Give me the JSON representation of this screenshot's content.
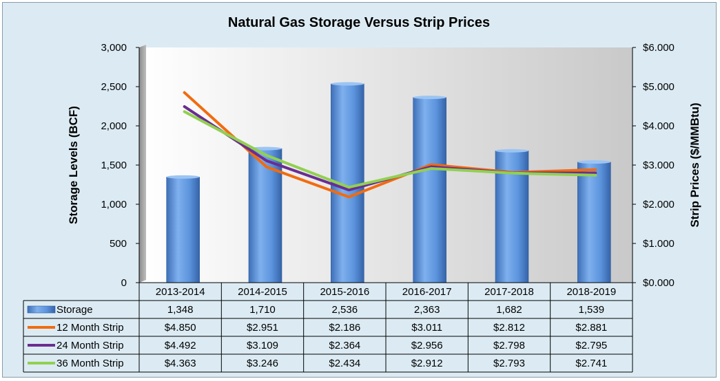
{
  "chart_data": {
    "type": "bar+line",
    "title": "Natural Gas Storage Versus Strip Prices",
    "ylabel_left": "Storage Levels (BCF)",
    "ylabel_right": "Strip Prices ($/MMBtu)",
    "ylim_left": [
      0,
      3000
    ],
    "ylim_right": [
      0,
      6
    ],
    "yticks_left": [
      "0",
      "500",
      "1,000",
      "1,500",
      "2,000",
      "2,500",
      "3,000"
    ],
    "yticks_right": [
      "$0.000",
      "$1.000",
      "$2.000",
      "$3.000",
      "$4.000",
      "$5.000",
      "$6.000"
    ],
    "categories": [
      "2013-2014",
      "2014-2015",
      "2015-2016",
      "2016-2017",
      "2017-2018",
      "2018-2019"
    ],
    "grid": false,
    "legend": "data-table",
    "bar_series": {
      "name": "Storage",
      "color": "#5b93dc",
      "values": [
        1348,
        1710,
        2536,
        2363,
        1682,
        1539
      ],
      "labels": [
        "1,348",
        "1,710",
        "2,536",
        "2,363",
        "1,682",
        "1,539"
      ]
    },
    "line_series": [
      {
        "name": "12 Month Strip",
        "color": "#f26b0f",
        "values": [
          4.85,
          2.951,
          2.186,
          3.011,
          2.812,
          2.881
        ],
        "labels": [
          "$4.850",
          "$2.951",
          "$2.186",
          "$3.011",
          "$2.812",
          "$2.881"
        ]
      },
      {
        "name": "24 Month Strip",
        "color": "#6a2d91",
        "values": [
          4.492,
          3.109,
          2.364,
          2.956,
          2.798,
          2.795
        ],
        "labels": [
          "$4.492",
          "$3.109",
          "$2.364",
          "$2.956",
          "$2.798",
          "$2.795"
        ]
      },
      {
        "name": "36 Month Strip",
        "color": "#92d050",
        "values": [
          4.363,
          3.246,
          2.434,
          2.912,
          2.793,
          2.741
        ],
        "labels": [
          "$4.363",
          "$3.246",
          "$2.434",
          "$2.912",
          "$2.793",
          "$2.741"
        ]
      }
    ]
  }
}
